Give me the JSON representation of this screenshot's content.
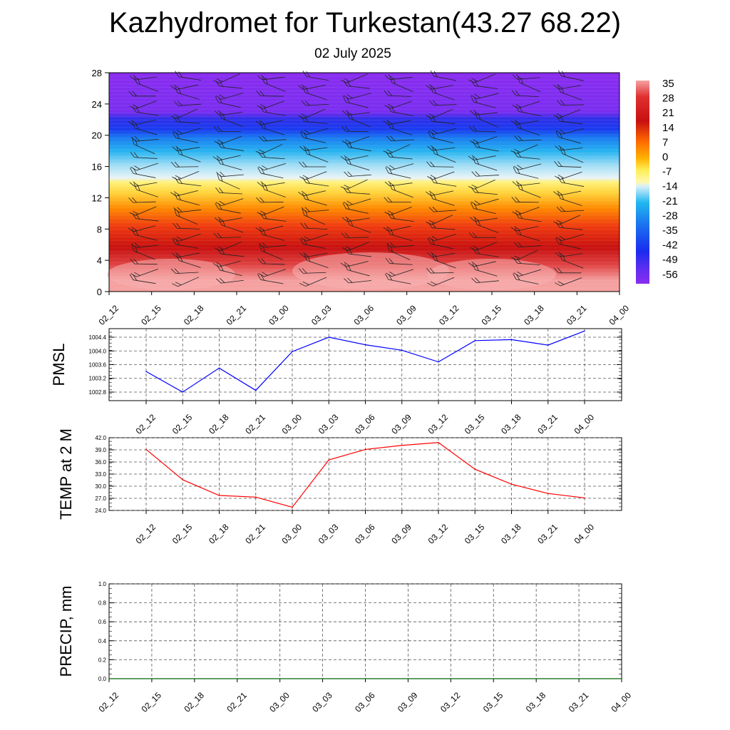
{
  "header": {
    "title": "Kazhydromet for Turkestan(43.27 68.22)",
    "subtitle": "02 July 2025"
  },
  "chart_data": [
    {
      "type": "heatmap",
      "name": "cross-section",
      "x_categories": [
        "02_12",
        "02_15",
        "02_18",
        "02_21",
        "03_00",
        "03_03",
        "03_06",
        "03_09",
        "03_12",
        "03_15",
        "03_18",
        "03_21",
        "04_00"
      ],
      "y_ticks": [
        0,
        4,
        8,
        12,
        16,
        20,
        24,
        28
      ],
      "ylim": [
        0,
        28
      ],
      "colorbar": {
        "labels": [
          "35",
          "28",
          "21",
          "14",
          "7",
          "0",
          "-7",
          "-14",
          "-21",
          "-28",
          "-35",
          "-42",
          "-49",
          "-56"
        ]
      },
      "colors": {
        "warm_light": "#f7a1a1",
        "red": "#cc1212",
        "orange": "#ff7a00",
        "yellow": "#ffee55",
        "cyan": "#22b8f0",
        "blue": "#1a3cf0",
        "purple": "#8a2df0"
      }
    },
    {
      "type": "line",
      "name": "pmsl",
      "ylabel": "PMSL",
      "x": [
        "02_12",
        "02_15",
        "02_18",
        "02_21",
        "03_00",
        "03_03",
        "03_06",
        "03_09",
        "03_12",
        "03_15",
        "03_18",
        "03_21",
        "04_00"
      ],
      "series": [
        {
          "values": [
            1003.4,
            1002.8,
            1003.5,
            1002.85,
            1003.98,
            1004.4,
            1004.18,
            1004.02,
            1003.68,
            1004.3,
            1004.33,
            1004.17,
            1004.58
          ],
          "color": "#0000ff"
        }
      ],
      "ylim": [
        1002.55,
        1004.65
      ],
      "yticks": [
        "1002.8",
        "1003.2",
        "1003.6",
        "1004.0",
        "1004.4"
      ],
      "grid": true
    },
    {
      "type": "line",
      "name": "temp",
      "ylabel": "TEMP at 2 M",
      "x": [
        "02_12",
        "02_15",
        "02_18",
        "02_21",
        "03_00",
        "03_03",
        "03_06",
        "03_09",
        "03_12",
        "03_15",
        "03_18",
        "03_21",
        "04_00"
      ],
      "series": [
        {
          "values": [
            39.1,
            31.6,
            27.7,
            27.3,
            24.8,
            36.5,
            39.1,
            40.1,
            40.8,
            34.2,
            30.5,
            28.2,
            27.1
          ],
          "color": "#ff0000"
        }
      ],
      "ylim": [
        24.0,
        42.0
      ],
      "yticks": [
        "24.0",
        "27.0",
        "30.0",
        "33.0",
        "36.0",
        "39.0",
        "42.0"
      ],
      "grid": true
    },
    {
      "type": "line",
      "name": "precip",
      "ylabel": "PRECIP, mm",
      "x": [
        "02_12",
        "02_15",
        "02_18",
        "02_21",
        "03_00",
        "03_03",
        "03_06",
        "03_09",
        "03_12",
        "03_15",
        "03_18",
        "03_21",
        "04_00"
      ],
      "series": [
        {
          "values": [
            0,
            0,
            0,
            0,
            0,
            0,
            0,
            0,
            0,
            0,
            0,
            0,
            0
          ],
          "color": "#006400"
        }
      ],
      "ylim": [
        0,
        1.0
      ],
      "yticks": [
        "0.0",
        "0.2",
        "0.4",
        "0.6",
        "0.8",
        "1.0"
      ],
      "grid": true
    }
  ]
}
